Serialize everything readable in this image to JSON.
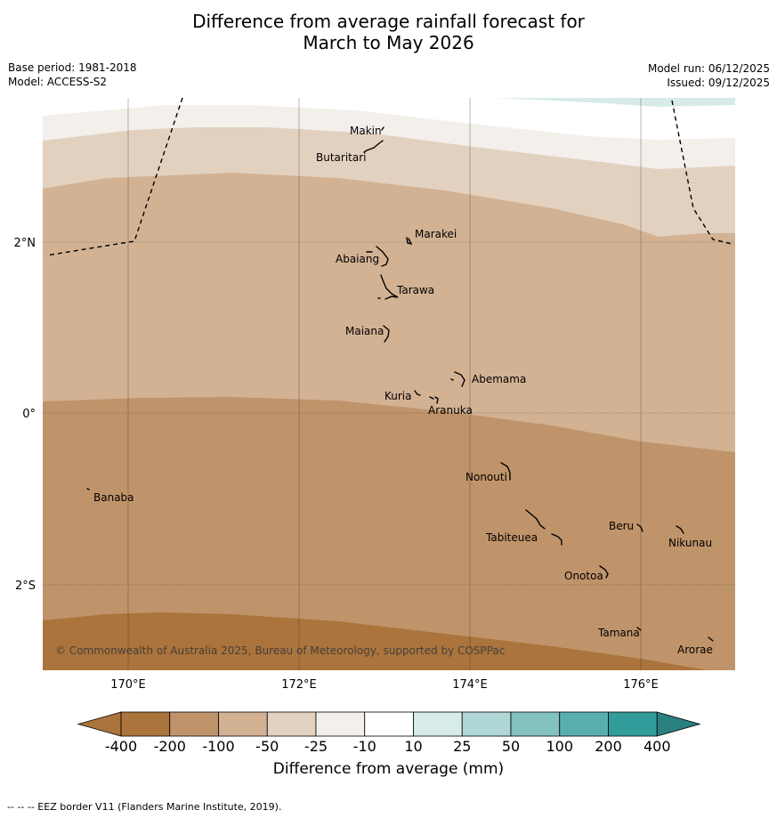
{
  "title_lines": [
    "Difference from average rainfall forecast for",
    "March to May 2026"
  ],
  "meta_left": [
    "Base period: 1981-2018",
    "Model: ACCESS-S2"
  ],
  "meta_right": [
    "Model run: 06/12/2025",
    "Issued: 09/12/2025"
  ],
  "axes": {
    "lon_ticks": [
      "170°E",
      "172°E",
      "174°E",
      "176°E"
    ],
    "lat_ticks": [
      "2°N",
      "0°",
      "2°S"
    ]
  },
  "islands": [
    {
      "name": "Makin"
    },
    {
      "name": "Butaritari"
    },
    {
      "name": "Marakei"
    },
    {
      "name": "Abaiang"
    },
    {
      "name": "Tarawa"
    },
    {
      "name": "Maiana"
    },
    {
      "name": "Abemama"
    },
    {
      "name": "Kuria"
    },
    {
      "name": "Aranuka"
    },
    {
      "name": "Nonouti"
    },
    {
      "name": "Banaba"
    },
    {
      "name": "Beru"
    },
    {
      "name": "Tabiteuea"
    },
    {
      "name": "Nikunau"
    },
    {
      "name": "Onotoa"
    },
    {
      "name": "Tamana"
    },
    {
      "name": "Arorae"
    }
  ],
  "copyright": "© Commonwealth of Australia 2025, Bureau of Meteorology, supported by COSPPac",
  "colorbar": {
    "labels": [
      "-400",
      "-200",
      "-100",
      "-50",
      "-25",
      "-10",
      "10",
      "25",
      "50",
      "100",
      "200",
      "400"
    ],
    "colors": [
      "#ab743c",
      "#c0946a",
      "#d2b293",
      "#e3d1bf",
      "#f3efea",
      "#ffffff",
      "#d6ebea",
      "#afd7d6",
      "#83c2c0",
      "#5aafad",
      "#319c9a",
      "#2a7f7f"
    ],
    "title": "Difference from average (mm)"
  },
  "footnote": "--  --  -- EEZ border V11 (Flanders Marine Institute, 2019)."
}
